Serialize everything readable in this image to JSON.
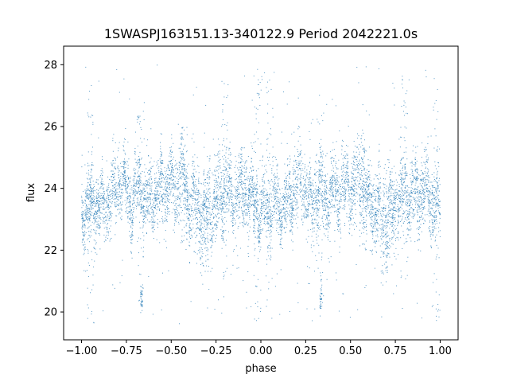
{
  "chart_data": {
    "type": "scatter",
    "title": "1SWASPJ163151.13-340122.9 Period 2042221.0s",
    "xlabel": "phase",
    "ylabel": "flux",
    "xlim": [
      -1.1,
      1.1
    ],
    "ylim": [
      19.1,
      28.6
    ],
    "xticks": [
      -1.0,
      -0.75,
      -0.5,
      -0.25,
      0.0,
      0.25,
      0.5,
      0.75,
      1.0
    ],
    "xtick_labels": [
      "−1.00",
      "−0.75",
      "−0.50",
      "−0.25",
      "0.00",
      "0.25",
      "0.50",
      "0.75",
      "1.00"
    ],
    "yticks": [
      20,
      22,
      24,
      26,
      28
    ],
    "ytick_labels": [
      "20",
      "22",
      "24",
      "26",
      "28"
    ],
    "grid": false,
    "legend": "none",
    "point_color": "#1f77b4",
    "profile_period": 1.0,
    "profile": [
      {
        "phase": 0.0,
        "flux": 23.2,
        "spread": 0.5
      },
      {
        "phase": 0.04,
        "flux": 23.4,
        "spread": 0.55
      },
      {
        "phase": 0.08,
        "flux": 23.5,
        "spread": 0.55
      },
      {
        "phase": 0.12,
        "flux": 23.3,
        "spread": 0.5
      },
      {
        "phase": 0.16,
        "flux": 23.6,
        "spread": 0.55
      },
      {
        "phase": 0.2,
        "flux": 24.2,
        "spread": 0.5
      },
      {
        "phase": 0.24,
        "flux": 24.1,
        "spread": 0.5
      },
      {
        "phase": 0.28,
        "flux": 23.5,
        "spread": 0.6
      },
      {
        "phase": 0.32,
        "flux": 24.1,
        "spread": 0.55
      },
      {
        "phase": 0.36,
        "flux": 23.6,
        "spread": 0.5
      },
      {
        "phase": 0.4,
        "flux": 23.8,
        "spread": 0.55
      },
      {
        "phase": 0.44,
        "flux": 23.9,
        "spread": 0.6
      },
      {
        "phase": 0.48,
        "flux": 24.0,
        "spread": 0.55
      },
      {
        "phase": 0.52,
        "flux": 24.0,
        "spread": 0.55
      },
      {
        "phase": 0.56,
        "flux": 24.4,
        "spread": 0.65
      },
      {
        "phase": 0.6,
        "flux": 23.5,
        "spread": 0.6
      },
      {
        "phase": 0.64,
        "flux": 23.4,
        "spread": 0.6
      },
      {
        "phase": 0.68,
        "flux": 22.9,
        "spread": 0.8
      },
      {
        "phase": 0.72,
        "flux": 23.0,
        "spread": 0.7
      },
      {
        "phase": 0.76,
        "flux": 23.6,
        "spread": 0.6
      },
      {
        "phase": 0.8,
        "flux": 24.0,
        "spread": 0.55
      },
      {
        "phase": 0.84,
        "flux": 23.6,
        "spread": 0.55
      },
      {
        "phase": 0.88,
        "flux": 23.8,
        "spread": 0.6
      },
      {
        "phase": 0.92,
        "flux": 24.0,
        "spread": 0.6
      },
      {
        "phase": 0.96,
        "flux": 23.5,
        "spread": 0.55
      },
      {
        "phase": 1.0,
        "flux": 23.2,
        "spread": 0.5
      }
    ],
    "outlier_bands": [
      {
        "phase": 0.05,
        "low": 19.6,
        "high": 27.8
      },
      {
        "phase": 0.33,
        "low": 20.3,
        "high": 26.5
      },
      {
        "phase": 0.57,
        "low": 22.0,
        "high": 26.0
      },
      {
        "phase": 0.7,
        "low": 21.2,
        "high": 25.2
      },
      {
        "phase": 0.8,
        "low": 21.0,
        "high": 27.8
      },
      {
        "phase": 0.98,
        "low": 19.6,
        "high": 27.9
      }
    ],
    "clusters": [
      {
        "phase": 0.335,
        "flux": 20.4,
        "spread": 0.2
      },
      {
        "phase": -0.665,
        "flux": 20.4,
        "spread": 0.2
      }
    ]
  }
}
